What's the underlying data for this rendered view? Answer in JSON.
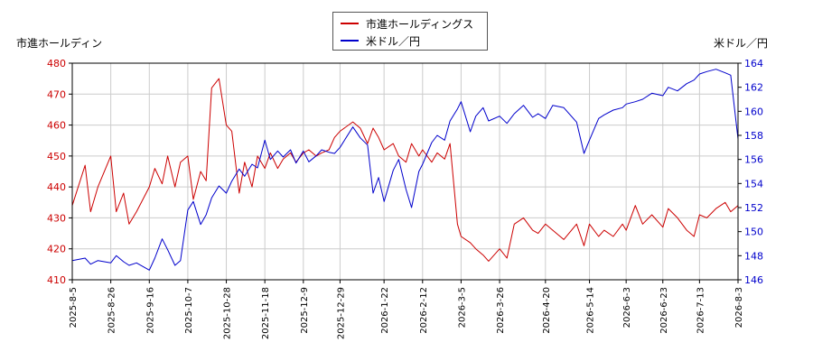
{
  "chart_data": {
    "type": "line",
    "title": "",
    "ylabel_left": "市進ホールディン",
    "ylabel_right": "米ドル／円",
    "ylim_left": [
      410,
      480
    ],
    "yticks_left": [
      410,
      420,
      430,
      440,
      450,
      460,
      470,
      480
    ],
    "ylim_right": [
      146,
      164
    ],
    "yticks_right": [
      146,
      148,
      150,
      152,
      154,
      156,
      158,
      160,
      162,
      164
    ],
    "xlim": [
      "2025-8-5",
      "2026-8-3"
    ],
    "x_ticks": [
      "2025-8-5",
      "2025-8-26",
      "2025-9-16",
      "2025-10-7",
      "2025-10-28",
      "2025-11-18",
      "2025-12-9",
      "2025-12-29",
      "2026-1-22",
      "2026-2-12",
      "2026-3-5",
      "2026-3-26",
      "2026-4-20",
      "2026-5-14",
      "2026-6-3",
      "2026-6-23",
      "2026-7-13",
      "2026-8-3"
    ],
    "grid": true,
    "legend_position": "top-center",
    "colors": {
      "left": "#cc0000",
      "right": "#0000cc",
      "grid": "#cccccc"
    },
    "series": [
      {
        "name": "市進ホールディングス",
        "axis": "left",
        "x": [
          "2025-8-5",
          "2025-8-12",
          "2025-8-15",
          "2025-8-19",
          "2025-8-26",
          "2025-8-29",
          "2025-9-2",
          "2025-9-5",
          "2025-9-9",
          "2025-9-16",
          "2025-9-19",
          "2025-9-23",
          "2025-9-26",
          "2025-9-30",
          "2025-10-3",
          "2025-10-7",
          "2025-10-10",
          "2025-10-14",
          "2025-10-17",
          "2025-10-20",
          "2025-10-24",
          "2025-10-28",
          "2025-10-31",
          "2025-11-4",
          "2025-11-7",
          "2025-11-11",
          "2025-11-14",
          "2025-11-18",
          "2025-11-21",
          "2025-11-25",
          "2025-11-28",
          "2025-12-2",
          "2025-12-5",
          "2025-12-9",
          "2025-12-12",
          "2025-12-16",
          "2025-12-19",
          "2025-12-23",
          "2025-12-26",
          "2025-12-29",
          "2026-1-5",
          "2026-1-9",
          "2026-1-13",
          "2026-1-16",
          "2026-1-19",
          "2026-1-22",
          "2026-1-27",
          "2026-1-30",
          "2026-2-3",
          "2026-2-6",
          "2026-2-10",
          "2026-2-12",
          "2026-2-17",
          "2026-2-20",
          "2026-2-24",
          "2026-2-27",
          "2026-3-3",
          "2026-3-5",
          "2026-3-10",
          "2026-3-13",
          "2026-3-17",
          "2026-3-20",
          "2026-3-26",
          "2026-3-30",
          "2026-4-3",
          "2026-4-8",
          "2026-4-13",
          "2026-4-16",
          "2026-4-20",
          "2026-4-24",
          "2026-4-30",
          "2026-5-7",
          "2026-5-11",
          "2026-5-14",
          "2026-5-19",
          "2026-5-22",
          "2026-5-27",
          "2026-6-1",
          "2026-6-3",
          "2026-6-8",
          "2026-6-12",
          "2026-6-17",
          "2026-6-23",
          "2026-6-26",
          "2026-7-1",
          "2026-7-6",
          "2026-7-10",
          "2026-7-13",
          "2026-7-17",
          "2026-7-22",
          "2026-7-27",
          "2026-7-30",
          "2026-8-3"
        ],
        "values": [
          434,
          447,
          432,
          440,
          450,
          432,
          438,
          428,
          432,
          440,
          446,
          441,
          450,
          440,
          448,
          450,
          436,
          445,
          442,
          472,
          475,
          460,
          458,
          438,
          448,
          440,
          450,
          446,
          451,
          446,
          449,
          451,
          448,
          451,
          452,
          450,
          451,
          452,
          456,
          458,
          461,
          459,
          454,
          459,
          456,
          452,
          454,
          450,
          448,
          454,
          450,
          452,
          448,
          451,
          449,
          454,
          428,
          424,
          422,
          420,
          418,
          416,
          420,
          417,
          428,
          430,
          426,
          425,
          428,
          426,
          423,
          428,
          421,
          428,
          424,
          426,
          424,
          428,
          426,
          434,
          428,
          431,
          427,
          433,
          430,
          426,
          424,
          431,
          430,
          433,
          435,
          432,
          434
        ],
        "values_note": "",
        "draw": "polyline"
      },
      {
        "name": "米ドル／円",
        "axis": "right",
        "x": [
          "2025-8-5",
          "2025-8-12",
          "2025-8-15",
          "2025-8-19",
          "2025-8-26",
          "2025-8-29",
          "2025-9-2",
          "2025-9-5",
          "2025-9-9",
          "2025-9-16",
          "2025-9-19",
          "2025-9-23",
          "2025-9-26",
          "2025-9-30",
          "2025-10-3",
          "2025-10-7",
          "2025-10-10",
          "2025-10-14",
          "2025-10-17",
          "2025-10-20",
          "2025-10-24",
          "2025-10-28",
          "2025-10-31",
          "2025-11-4",
          "2025-11-7",
          "2025-11-11",
          "2025-11-14",
          "2025-11-18",
          "2025-11-21",
          "2025-11-25",
          "2025-11-28",
          "2025-12-2",
          "2025-12-5",
          "2025-12-9",
          "2025-12-12",
          "2025-12-16",
          "2025-12-19",
          "2025-12-23",
          "2025-12-26",
          "2025-12-29",
          "2026-1-5",
          "2026-1-9",
          "2026-1-13",
          "2026-1-16",
          "2026-1-19",
          "2026-1-22",
          "2026-1-27",
          "2026-1-30",
          "2026-2-3",
          "2026-2-6",
          "2026-2-10",
          "2026-2-12",
          "2026-2-17",
          "2026-2-20",
          "2026-2-24",
          "2026-2-27",
          "2026-3-3",
          "2026-3-5",
          "2026-3-10",
          "2026-3-13",
          "2026-3-17",
          "2026-3-20",
          "2026-3-26",
          "2026-3-30",
          "2026-4-3",
          "2026-4-8",
          "2026-4-13",
          "2026-4-16",
          "2026-4-20",
          "2026-4-24",
          "2026-4-30",
          "2026-5-7",
          "2026-5-11",
          "2026-5-14",
          "2026-5-19",
          "2026-5-22",
          "2026-5-27",
          "2026-6-1",
          "2026-6-3",
          "2026-6-8",
          "2026-6-12",
          "2026-6-17",
          "2026-6-23",
          "2026-6-26",
          "2026-7-1",
          "2026-7-6",
          "2026-7-10",
          "2026-7-13",
          "2026-7-17",
          "2026-7-22",
          "2026-7-27",
          "2026-7-30",
          "2026-8-3"
        ],
        "values": [
          147.6,
          147.8,
          147.3,
          147.6,
          147.4,
          148.0,
          147.5,
          147.2,
          147.4,
          146.8,
          147.8,
          149.4,
          148.5,
          147.2,
          147.6,
          151.8,
          152.5,
          150.6,
          151.4,
          152.8,
          153.8,
          153.2,
          154.2,
          155.2,
          154.6,
          155.6,
          155.3,
          157.6,
          156.0,
          156.7,
          156.2,
          156.8,
          155.7,
          156.7,
          155.8,
          156.3,
          156.8,
          156.6,
          156.5,
          157.0,
          158.7,
          157.8,
          157.2,
          153.2,
          154.5,
          152.5,
          155.1,
          156.0,
          153.5,
          152.0,
          155.0,
          155.6,
          157.4,
          158.0,
          157.6,
          159.2,
          160.2,
          160.8,
          158.3,
          159.6,
          160.3,
          159.2,
          159.6,
          159.0,
          159.8,
          160.5,
          159.5,
          159.8,
          159.4,
          160.5,
          160.3,
          159.1,
          156.5,
          157.6,
          159.4,
          159.7,
          160.1,
          160.3,
          160.6,
          160.8,
          161.0,
          161.5,
          161.3,
          162.0,
          161.7,
          162.3,
          162.6,
          163.1,
          163.3,
          163.5,
          163.2,
          163.0,
          157.7
        ],
        "draw": "polyline"
      }
    ]
  }
}
